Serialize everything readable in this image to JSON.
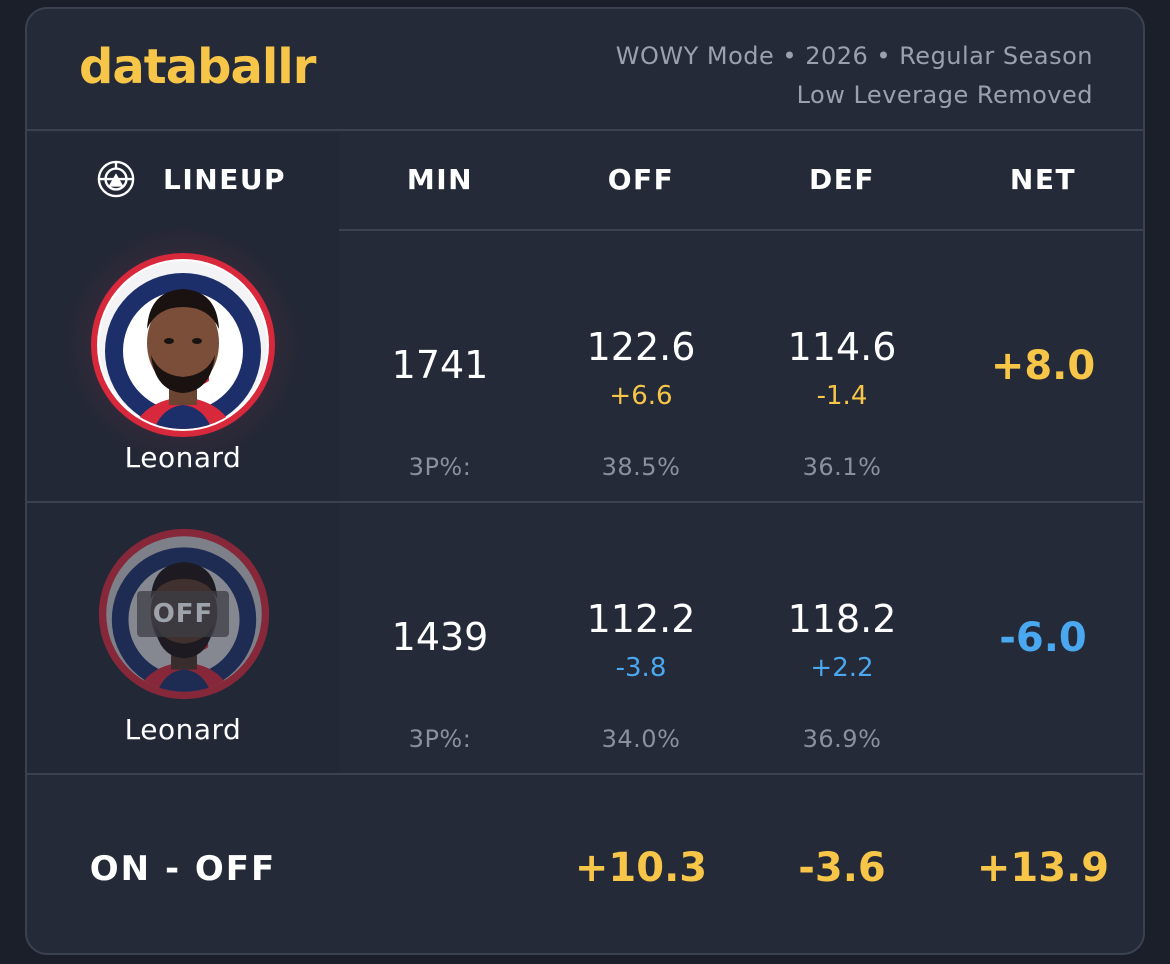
{
  "header": {
    "logo": "databallr",
    "subtitle_line1": "WOWY Mode • 2026 • Regular Season",
    "subtitle_line2": "Low Leverage Removed"
  },
  "columns": {
    "lineup": "LINEUP",
    "min": "MIN",
    "off": "OFF",
    "def": "DEF",
    "net": "NET"
  },
  "rows": [
    {
      "player": "Leonard",
      "state": "on",
      "min": "1741",
      "off": "122.6",
      "off_diff": "+6.6",
      "def": "114.6",
      "def_diff": "-1.4",
      "net": "+8.0",
      "tp_label": "3P%:",
      "off_tp": "38.5%",
      "def_tp": "36.1%"
    },
    {
      "player": "Leonard",
      "state": "off",
      "badge": "OFF",
      "min": "1439",
      "off": "112.2",
      "off_diff": "-3.8",
      "def": "118.2",
      "def_diff": "+2.2",
      "net": "-6.0",
      "tp_label": "3P%:",
      "off_tp": "34.0%",
      "def_tp": "36.9%"
    }
  ],
  "summary": {
    "label": "ON - OFF",
    "off": "+10.3",
    "def": "-3.6",
    "net": "+13.9"
  },
  "colors": {
    "accent_gold": "#f7c548",
    "accent_blue": "#4aa8f0",
    "team_red": "#d8283c",
    "team_navy": "#1c2f6b",
    "background": "#242a38"
  },
  "icons": {
    "lineup": "team-logo-icon"
  }
}
